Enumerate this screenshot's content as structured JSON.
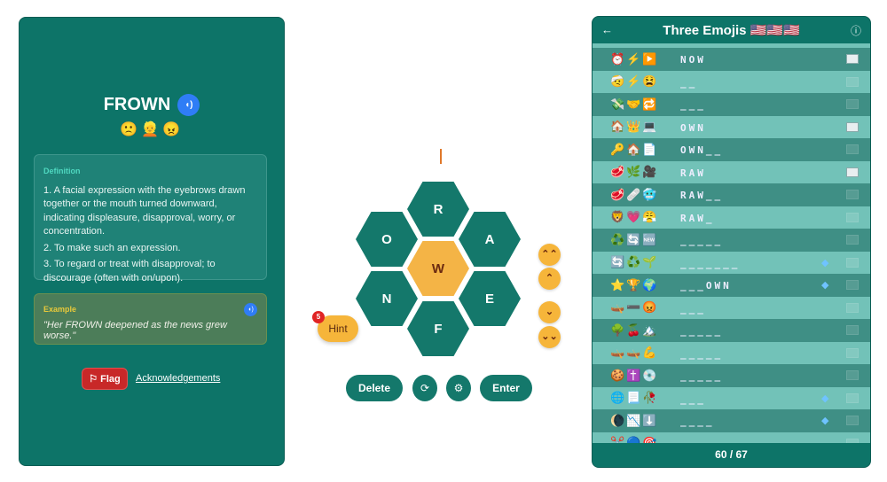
{
  "word": {
    "title": "FROWN",
    "emojis": "🙁👱😠",
    "definition_label": "Definition",
    "definitions": [
      "1. A facial expression with the eyebrows drawn together or the mouth turned downward, indicating displeasure, disapproval, worry, or concentration.",
      "2. To make such an expression.",
      "3. To regard or treat with disapproval; to discourage (often with on/upon)."
    ],
    "example_label": "Example",
    "example": "\"Her FROWN deepened as the news grew worse.\"",
    "flag_label": "Flag",
    "ack_label": "Acknowledgements"
  },
  "game": {
    "typed": "",
    "center": "W",
    "letters": [
      "R",
      "O",
      "A",
      "N",
      "E",
      "F"
    ],
    "hint_label": "Hint",
    "hint_count": "5",
    "delete_label": "Delete",
    "enter_label": "Enter"
  },
  "list": {
    "title": "Three Emojis 🇺🇸🇺🇸🇺🇸",
    "progress": "60 / 67",
    "rows": [
      {
        "emojis": "⏰⚡▶️",
        "answer": "NOW",
        "gem": false,
        "book": true
      },
      {
        "emojis": "🤕⚡😫",
        "answer": "__",
        "gem": false,
        "book": false
      },
      {
        "emojis": "💸🤝🔁",
        "answer": "___",
        "gem": false,
        "book": false
      },
      {
        "emojis": "🏠👑💻",
        "answer": "OWN",
        "gem": false,
        "book": true
      },
      {
        "emojis": "🔑🏠📄",
        "answer": "OWN__",
        "gem": false,
        "book": false
      },
      {
        "emojis": "🥩🌿🎥",
        "answer": "RAW",
        "gem": false,
        "book": true
      },
      {
        "emojis": "🥩🩹🥶",
        "answer": "RAW__",
        "gem": false,
        "book": false
      },
      {
        "emojis": "🦁💗😤",
        "answer": "RAW_",
        "gem": false,
        "book": false
      },
      {
        "emojis": "♻️🔄🆕",
        "answer": "_____",
        "gem": false,
        "book": false
      },
      {
        "emojis": "🔄♻️🌱",
        "answer": "_______",
        "gem": true,
        "book": false
      },
      {
        "emojis": "⭐🏆🌍",
        "answer": "___OWN",
        "gem": true,
        "book": false
      },
      {
        "emojis": "🛶➖😡",
        "answer": "___",
        "gem": false,
        "book": false
      },
      {
        "emojis": "🌳🍒🏔️",
        "answer": "_____",
        "gem": false,
        "book": false
      },
      {
        "emojis": "🛶🛶💪",
        "answer": "_____",
        "gem": false,
        "book": false
      },
      {
        "emojis": "🍪✝️💿",
        "answer": "_____",
        "gem": false,
        "book": false
      },
      {
        "emojis": "🌐📃🥀",
        "answer": "___",
        "gem": true,
        "book": false
      },
      {
        "emojis": "🌘📉⬇️",
        "answer": "____",
        "gem": true,
        "book": false
      },
      {
        "emojis": "✂️🔵🎯",
        "answer": "",
        "gem": false,
        "book": false
      }
    ]
  }
}
